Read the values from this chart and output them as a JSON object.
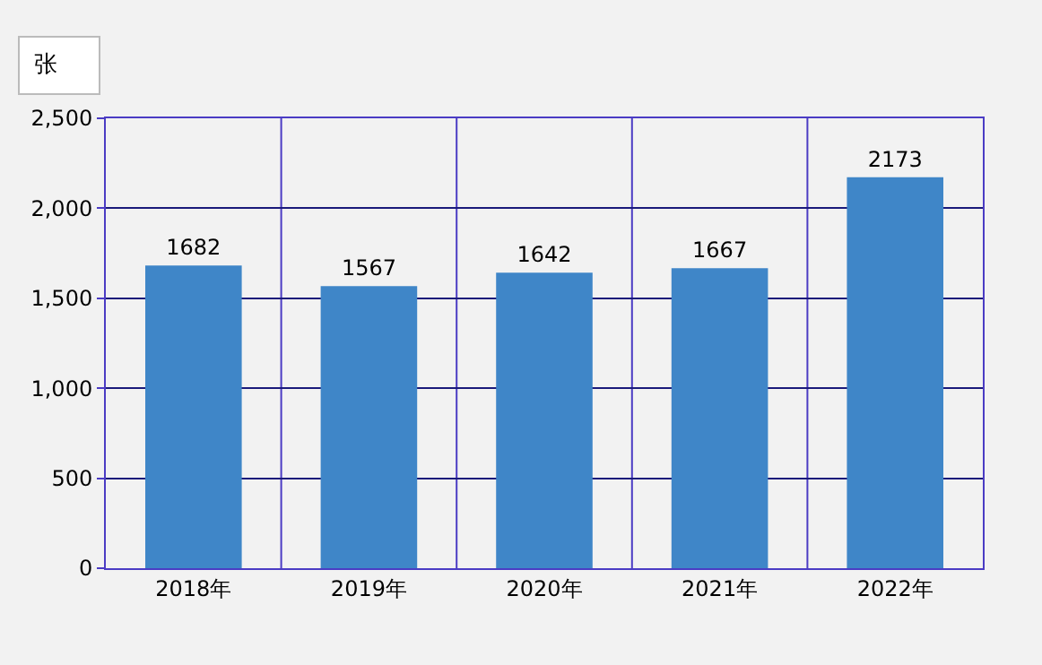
{
  "chart_data": {
    "type": "bar",
    "ylabel": "张",
    "categories": [
      "2018年",
      "2019年",
      "2020年",
      "2021年",
      "2022年"
    ],
    "values": [
      1682,
      1567,
      1642,
      1667,
      2173
    ],
    "color": "#3f86c8",
    "ylim": [
      0,
      2500
    ],
    "yticks": [
      0,
      {
        "value": 500,
        "label": "500"
      },
      {
        "value": 1000,
        "label": "1,000"
      },
      {
        "value": 1500,
        "label": "1,500"
      },
      {
        "value": 2000,
        "label": "2,000"
      },
      {
        "value": 2500,
        "label": "2,500"
      }
    ],
    "grid": true,
    "data_labels": true
  }
}
